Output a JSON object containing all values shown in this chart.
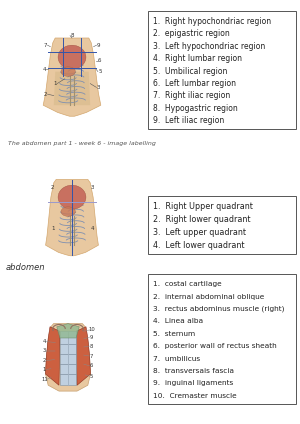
{
  "bg_color": "#ffffff",
  "panel1": {
    "caption": "The abdomen part 1 - week 6 - image labelling",
    "list": [
      "Right hypochondriac region",
      "epigastric region",
      "Left hypochondriac region",
      "Right lumbar region",
      "Umbilical region",
      "Left lumbar region",
      "Right iliac region",
      "Hypogastric region",
      "Left iliac region"
    ]
  },
  "panel2": {
    "list": [
      "Right Upper quadrant",
      "Right lower quadrant",
      "Left upper quadrant",
      "Left lower quadrant"
    ]
  },
  "panel3": {
    "caption": "abdomen",
    "list": [
      "costal cartilage",
      "internal abdominal oblique",
      "rectus abdominus muscle (right)",
      "Linea alba",
      "sternum",
      "posterior wall of rectus sheath",
      "umbilicus",
      "transversais fascia",
      "inguinal ligaments",
      "Cremaster muscle"
    ]
  }
}
